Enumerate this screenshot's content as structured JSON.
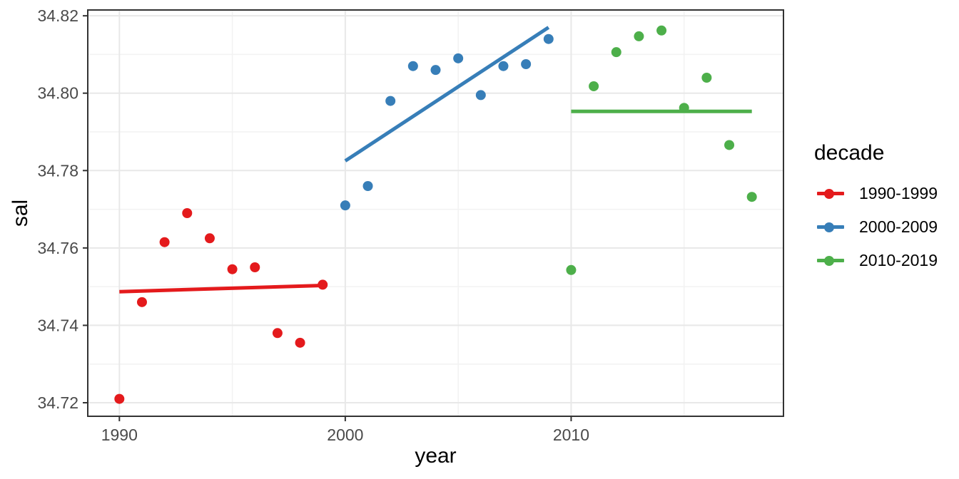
{
  "chart_data": {
    "type": "scatter",
    "title": "",
    "xlabel": "year",
    "ylabel": "sal",
    "legend_title": "decade",
    "legend_position": "right",
    "grid": true,
    "x_domain": [
      1988.6,
      2019.4
    ],
    "y_domain": [
      34.7165,
      34.8215
    ],
    "x_major_ticks": [
      1990,
      2000,
      2010
    ],
    "x_tick_labels": [
      "1990",
      "2000",
      "2010"
    ],
    "x_minor_ticks": [
      1995,
      2005,
      2015
    ],
    "y_major_ticks": [
      34.72,
      34.74,
      34.76,
      34.78,
      34.8,
      34.82
    ],
    "y_tick_labels": [
      "34.72",
      "34.74",
      "34.76",
      "34.78",
      "34.80",
      "34.82"
    ],
    "y_minor_ticks": [
      34.73,
      34.75,
      34.77,
      34.79,
      34.81
    ],
    "series": [
      {
        "name": "1990-1999",
        "color": "#E41A1C",
        "points": [
          [
            1990,
            34.721
          ],
          [
            1991,
            34.746
          ],
          [
            1992,
            34.7615
          ],
          [
            1993,
            34.769
          ],
          [
            1994,
            34.7625
          ],
          [
            1995,
            34.7545
          ],
          [
            1996,
            34.755
          ],
          [
            1997,
            34.738
          ],
          [
            1998,
            34.7355
          ],
          [
            1999,
            34.7505
          ]
        ],
        "trend": {
          "x1": 1990,
          "y1": 34.7487,
          "x2": 1999,
          "y2": 34.7503
        }
      },
      {
        "name": "2000-2009",
        "color": "#377EB8",
        "points": [
          [
            2000,
            34.771
          ],
          [
            2001,
            34.776
          ],
          [
            2002,
            34.798
          ],
          [
            2003,
            34.807
          ],
          [
            2004,
            34.806
          ],
          [
            2005,
            34.809
          ],
          [
            2006,
            34.7995
          ],
          [
            2007,
            34.807
          ],
          [
            2008,
            34.8075
          ],
          [
            2009,
            34.814
          ]
        ],
        "trend": {
          "x1": 2000,
          "y1": 34.7825,
          "x2": 2009,
          "y2": 34.817
        }
      },
      {
        "name": "2010-2019",
        "color": "#4DAF4A",
        "points": [
          [
            2010,
            34.7543
          ],
          [
            2011,
            34.8018
          ],
          [
            2012,
            34.8106
          ],
          [
            2013,
            34.8147
          ],
          [
            2014,
            34.8162
          ],
          [
            2015,
            34.7962
          ],
          [
            2016,
            34.804
          ],
          [
            2017,
            34.7866
          ],
          [
            2018,
            34.7732
          ]
        ],
        "trend": {
          "x1": 2010,
          "y1": 34.7953,
          "x2": 2018,
          "y2": 34.7953
        }
      }
    ]
  },
  "style": {
    "background": "#FFFFFF",
    "panel_border": "#333333",
    "grid_major": "#E8E8E8",
    "grid_minor": "#F2F2F2",
    "tick_mark": "#333333",
    "tick_label_color": "#4A4A4A",
    "title_color": "#000000"
  }
}
